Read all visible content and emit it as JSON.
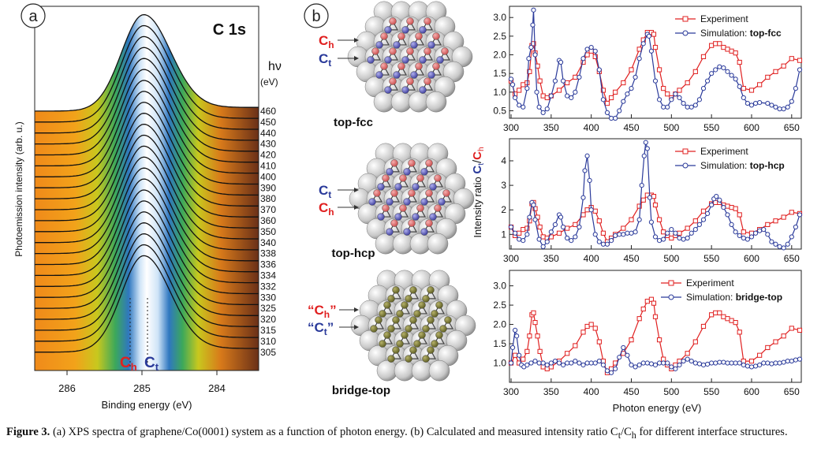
{
  "panel_a": {
    "letter": "a",
    "title": "C 1s",
    "hv_label": "hν",
    "hv_unit": "(eV)",
    "energies": [
      "460",
      "450",
      "440",
      "430",
      "420",
      "410",
      "400",
      "390",
      "380",
      "370",
      "360",
      "350",
      "340",
      "338",
      "336",
      "334",
      "332",
      "330",
      "325",
      "320",
      "315",
      "310",
      "305"
    ],
    "xlabel": "Binding energy (eV)",
    "ylabel": "Photoemission intensity (arb. u.)",
    "xticks": [
      "286",
      "285",
      "284"
    ],
    "ch_label": "C",
    "ch_sub": "h",
    "ct_label": "C",
    "ct_sub": "t"
  },
  "panel_b": {
    "letter": "b",
    "structures": [
      {
        "name": "top-fcc",
        "label1": "C",
        "sub1": "h",
        "label2": "C",
        "sub2": "t"
      },
      {
        "name": "top-hcp",
        "label1": "C",
        "sub1": "t",
        "label2": "C",
        "sub2": "h"
      },
      {
        "name": "bridge-top",
        "label1": "“C",
        "sub1": "h",
        "label2": "“C",
        "sub2": "t"
      }
    ],
    "ylabel_prefix": "Intensity ratio ",
    "ylabel_ct": "C",
    "ylabel_ct_sub": "t",
    "ylabel_sep": "/",
    "ylabel_ch": "C",
    "ylabel_ch_sub": "h",
    "xlabel": "Photon energy (eV)"
  },
  "chart_data": [
    {
      "type": "line",
      "title": "top-fcc",
      "xlim": [
        298,
        662
      ],
      "ylim": [
        0.3,
        3.3
      ],
      "xticks": [
        300,
        350,
        400,
        450,
        500,
        550,
        600,
        650
      ],
      "yticks": [
        0.5,
        1.0,
        1.5,
        2.0,
        2.5,
        3.0
      ],
      "legend": "top-right",
      "colors": {
        "experiment": "#e02020",
        "simulation": "#2a3a9a"
      },
      "series": [
        {
          "name": "Experiment",
          "x": [
            300,
            305,
            310,
            315,
            320,
            323,
            326,
            328,
            330,
            333,
            336,
            340,
            345,
            350,
            360,
            370,
            380,
            390,
            395,
            400,
            405,
            410,
            415,
            420,
            425,
            430,
            440,
            450,
            460,
            465,
            470,
            475,
            478,
            480,
            485,
            490,
            495,
            500,
            505,
            510,
            520,
            530,
            540,
            550,
            555,
            560,
            565,
            570,
            575,
            580,
            585,
            590,
            600,
            610,
            620,
            630,
            640,
            650,
            660
          ],
          "y": [
            1.3,
            0.95,
            1.05,
            1.2,
            1.25,
            1.55,
            2.25,
            2.3,
            2.05,
            1.7,
            1.3,
            0.9,
            0.85,
            0.9,
            1.05,
            1.25,
            1.4,
            1.8,
            2.0,
            2.1,
            1.95,
            1.55,
            1.05,
            0.7,
            0.85,
            1.0,
            1.25,
            1.6,
            2.15,
            2.4,
            2.6,
            2.6,
            2.55,
            2.2,
            1.6,
            1.1,
            0.95,
            0.85,
            0.95,
            1.05,
            1.25,
            1.55,
            1.95,
            2.25,
            2.3,
            2.3,
            2.2,
            2.15,
            2.1,
            2.05,
            1.8,
            1.1,
            1.05,
            1.2,
            1.4,
            1.55,
            1.7,
            1.9,
            1.85
          ]
        },
        {
          "name": "Simulation: top-fcc",
          "x": [
            300,
            302,
            305,
            310,
            315,
            320,
            322,
            325,
            327,
            328,
            330,
            332,
            335,
            340,
            345,
            350,
            355,
            360,
            362,
            365,
            370,
            375,
            380,
            385,
            390,
            395,
            400,
            405,
            410,
            415,
            420,
            425,
            430,
            435,
            440,
            445,
            450,
            455,
            460,
            465,
            470,
            472,
            475,
            480,
            485,
            490,
            495,
            500,
            505,
            510,
            515,
            520,
            525,
            530,
            535,
            540,
            545,
            550,
            555,
            560,
            565,
            570,
            575,
            580,
            585,
            590,
            595,
            600,
            605,
            610,
            620,
            625,
            630,
            635,
            640,
            645,
            650,
            655,
            660
          ],
          "y": [
            1.35,
            1.2,
            0.85,
            0.65,
            0.6,
            1.1,
            1.9,
            2.2,
            2.8,
            3.2,
            2.0,
            1.0,
            0.6,
            0.45,
            0.55,
            0.9,
            1.3,
            1.85,
            1.8,
            1.3,
            0.9,
            0.85,
            1.0,
            1.4,
            1.9,
            2.15,
            2.2,
            2.1,
            1.6,
            0.8,
            0.45,
            0.3,
            0.3,
            0.5,
            0.75,
            0.95,
            1.1,
            1.4,
            1.9,
            2.3,
            2.55,
            2.5,
            2.1,
            1.3,
            0.8,
            0.6,
            0.6,
            0.8,
            0.95,
            0.85,
            0.7,
            0.6,
            0.6,
            0.65,
            0.8,
            1.1,
            1.3,
            1.5,
            1.6,
            1.68,
            1.65,
            1.55,
            1.45,
            1.35,
            1.15,
            0.85,
            0.7,
            0.65,
            0.7,
            0.72,
            0.7,
            0.65,
            0.6,
            0.55,
            0.55,
            0.6,
            0.75,
            1.1,
            1.6
          ]
        }
      ]
    },
    {
      "type": "line",
      "title": "top-hcp",
      "xlim": [
        298,
        662
      ],
      "ylim": [
        0.4,
        4.9
      ],
      "xticks": [
        300,
        350,
        400,
        450,
        500,
        550,
        600,
        650
      ],
      "yticks": [
        1,
        2,
        3,
        4
      ],
      "legend": "top-right",
      "colors": {
        "experiment": "#e02020",
        "simulation": "#2a3a9a"
      },
      "series": [
        {
          "name": "Experiment",
          "x": [
            300,
            305,
            310,
            315,
            320,
            323,
            326,
            328,
            330,
            333,
            336,
            340,
            345,
            350,
            360,
            370,
            380,
            390,
            395,
            400,
            405,
            410,
            415,
            420,
            425,
            430,
            440,
            450,
            460,
            465,
            470,
            475,
            478,
            480,
            485,
            490,
            495,
            500,
            505,
            510,
            520,
            530,
            540,
            550,
            555,
            560,
            565,
            570,
            575,
            580,
            585,
            590,
            600,
            610,
            620,
            630,
            640,
            650,
            660
          ],
          "y": [
            1.3,
            0.95,
            1.05,
            1.2,
            1.25,
            1.55,
            2.25,
            2.3,
            2.05,
            1.7,
            1.3,
            0.9,
            0.85,
            0.9,
            1.05,
            1.25,
            1.4,
            1.8,
            2.0,
            2.1,
            1.95,
            1.55,
            1.05,
            0.7,
            0.85,
            1.0,
            1.25,
            1.6,
            2.15,
            2.4,
            2.6,
            2.6,
            2.55,
            2.2,
            1.6,
            1.1,
            0.95,
            0.85,
            0.95,
            1.05,
            1.25,
            1.55,
            1.95,
            2.25,
            2.3,
            2.3,
            2.2,
            2.15,
            2.1,
            2.05,
            1.8,
            1.1,
            1.05,
            1.2,
            1.4,
            1.55,
            1.7,
            1.9,
            1.85
          ]
        },
        {
          "name": "Simulation: top-hcp",
          "x": [
            300,
            305,
            310,
            315,
            320,
            323,
            326,
            328,
            330,
            335,
            340,
            345,
            350,
            355,
            360,
            362,
            365,
            370,
            375,
            380,
            385,
            390,
            392,
            395,
            398,
            400,
            405,
            410,
            415,
            420,
            425,
            430,
            435,
            440,
            445,
            450,
            455,
            460,
            463,
            466,
            468,
            470,
            473,
            475,
            480,
            485,
            490,
            495,
            500,
            505,
            510,
            515,
            520,
            525,
            530,
            535,
            540,
            545,
            550,
            553,
            556,
            560,
            565,
            570,
            575,
            580,
            585,
            590,
            595,
            600,
            605,
            610,
            615,
            620,
            625,
            630,
            635,
            640,
            645,
            650,
            655,
            660
          ],
          "y": [
            1.3,
            1.05,
            0.8,
            0.75,
            1.0,
            1.7,
            2.3,
            2.2,
            1.6,
            0.8,
            0.5,
            0.7,
            1.1,
            1.4,
            1.8,
            1.7,
            1.3,
            0.85,
            0.75,
            0.9,
            1.3,
            2.5,
            3.6,
            4.2,
            3.2,
            2.0,
            1.0,
            0.7,
            0.6,
            0.6,
            0.75,
            0.95,
            1.0,
            1.0,
            1.05,
            1.05,
            1.1,
            1.6,
            3.0,
            4.2,
            4.75,
            4.5,
            2.5,
            1.5,
            0.9,
            0.75,
            0.8,
            1.05,
            1.2,
            1.05,
            0.85,
            0.8,
            0.85,
            1.05,
            1.2,
            1.4,
            1.6,
            1.85,
            2.2,
            2.45,
            2.55,
            2.4,
            2.1,
            1.8,
            1.4,
            1.1,
            0.95,
            0.85,
            0.8,
            0.9,
            1.05,
            1.15,
            1.2,
            1.0,
            0.7,
            0.6,
            0.5,
            0.45,
            0.6,
            0.9,
            1.3,
            1.8
          ]
        }
      ]
    },
    {
      "type": "line",
      "title": "bridge-top",
      "xlim": [
        298,
        662
      ],
      "ylim": [
        0.5,
        3.4
      ],
      "xticks": [
        300,
        350,
        400,
        450,
        500,
        550,
        600,
        650
      ],
      "yticks": [
        1.0,
        1.5,
        2.0,
        2.5,
        3.0
      ],
      "legend": "top-right",
      "colors": {
        "experiment": "#e02020",
        "simulation": "#2a3a9a"
      },
      "series": [
        {
          "name": "Experiment",
          "x": [
            300,
            305,
            310,
            315,
            320,
            323,
            326,
            328,
            330,
            333,
            336,
            340,
            345,
            350,
            360,
            370,
            380,
            390,
            395,
            400,
            405,
            410,
            415,
            420,
            425,
            430,
            440,
            450,
            460,
            465,
            470,
            475,
            478,
            480,
            485,
            490,
            495,
            500,
            505,
            510,
            520,
            530,
            540,
            550,
            555,
            560,
            565,
            570,
            575,
            580,
            585,
            590,
            600,
            610,
            620,
            630,
            640,
            650,
            660
          ],
          "y": [
            1.0,
            1.2,
            1.0,
            1.1,
            1.3,
            1.7,
            2.25,
            2.3,
            2.05,
            1.7,
            1.3,
            0.9,
            0.85,
            0.9,
            1.05,
            1.25,
            1.45,
            1.8,
            1.95,
            2.0,
            1.9,
            1.55,
            1.05,
            0.75,
            0.85,
            1.0,
            1.25,
            1.6,
            2.15,
            2.4,
            2.6,
            2.65,
            2.55,
            2.2,
            1.6,
            1.1,
            0.95,
            0.85,
            0.95,
            1.05,
            1.25,
            1.55,
            1.95,
            2.25,
            2.3,
            2.3,
            2.2,
            2.15,
            2.1,
            2.05,
            1.8,
            1.05,
            1.05,
            1.2,
            1.4,
            1.55,
            1.7,
            1.9,
            1.85
          ]
        },
        {
          "name": "Simulation: bridge-top",
          "x": [
            300,
            302,
            305,
            307,
            310,
            313,
            316,
            320,
            325,
            330,
            335,
            340,
            345,
            350,
            355,
            360,
            365,
            370,
            375,
            380,
            385,
            390,
            395,
            400,
            405,
            410,
            415,
            420,
            425,
            430,
            435,
            440,
            445,
            450,
            455,
            460,
            465,
            470,
            475,
            480,
            485,
            490,
            495,
            500,
            505,
            510,
            515,
            520,
            525,
            530,
            535,
            540,
            545,
            550,
            555,
            560,
            565,
            570,
            575,
            580,
            585,
            590,
            595,
            600,
            605,
            610,
            615,
            620,
            625,
            630,
            635,
            640,
            645,
            650,
            655,
            660
          ],
          "y": [
            1.0,
            1.4,
            1.85,
            1.7,
            1.2,
            0.95,
            0.9,
            0.95,
            1.0,
            1.05,
            1.0,
            1.0,
            0.95,
            1.0,
            1.05,
            1.0,
            0.95,
            1.0,
            1.0,
            1.05,
            1.0,
            0.95,
            1.0,
            1.0,
            1.0,
            1.05,
            0.95,
            0.8,
            0.75,
            0.85,
            1.15,
            1.4,
            1.2,
            0.95,
            0.9,
            0.95,
            1.0,
            1.0,
            0.98,
            0.95,
            1.0,
            1.0,
            1.0,
            0.9,
            0.85,
            0.95,
            1.05,
            1.1,
            1.05,
            1.0,
            0.98,
            0.95,
            0.97,
            1.0,
            1.0,
            1.02,
            1.02,
            1.0,
            1.0,
            1.0,
            1.0,
            0.95,
            0.92,
            0.9,
            0.92,
            0.95,
            1.0,
            1.0,
            0.98,
            1.0,
            1.0,
            1.02,
            1.05,
            1.05,
            1.08,
            1.1
          ]
        }
      ]
    }
  ],
  "caption": {
    "label": "Figure 3.",
    "text": "(a) XPS spectra of graphene/Co(0001) system as a function of photon energy. (b) Calculated and measured intensity ratio C",
    "sub_t": "t",
    "slash": "/C",
    "sub_h": "h",
    "text_end": " for different interface structures."
  }
}
